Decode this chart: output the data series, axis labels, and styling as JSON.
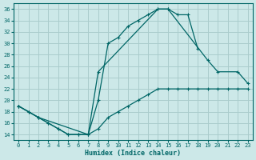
{
  "xlabel": "Humidex (Indice chaleur)",
  "bg_color": "#cce8e8",
  "grid_color": "#aacccc",
  "line_color": "#006666",
  "xlim": [
    -0.5,
    23.5
  ],
  "ylim": [
    13,
    37
  ],
  "xticks": [
    0,
    1,
    2,
    3,
    4,
    5,
    6,
    7,
    8,
    9,
    10,
    11,
    12,
    13,
    14,
    15,
    16,
    17,
    18,
    19,
    20,
    21,
    22,
    23
  ],
  "yticks": [
    14,
    16,
    18,
    20,
    22,
    24,
    26,
    28,
    30,
    32,
    34,
    36
  ],
  "line1_x": [
    0,
    1,
    2,
    3,
    4,
    5,
    6,
    7,
    8,
    9,
    10,
    11,
    12,
    13,
    14,
    15,
    16,
    17,
    18
  ],
  "line1_y": [
    19,
    18,
    17,
    16,
    15,
    14,
    14,
    14,
    20,
    30,
    31,
    33,
    34,
    35,
    36,
    36,
    35,
    35,
    29
  ],
  "line2_x": [
    0,
    1,
    2,
    3,
    4,
    5,
    6,
    7,
    8,
    9,
    10,
    11,
    12,
    13,
    14,
    15,
    16,
    17,
    18,
    19,
    20,
    21,
    22,
    23
  ],
  "line2_y": [
    19,
    18,
    17,
    16,
    15,
    14,
    14,
    14,
    15,
    17,
    18,
    19,
    20,
    21,
    22,
    22,
    22,
    22,
    22,
    22,
    22,
    22,
    22,
    22
  ],
  "line3_x": [
    0,
    2,
    7,
    8,
    14,
    15,
    19,
    20,
    22,
    23
  ],
  "line3_y": [
    19,
    17,
    14,
    25,
    36,
    36,
    27,
    25,
    25,
    23
  ]
}
